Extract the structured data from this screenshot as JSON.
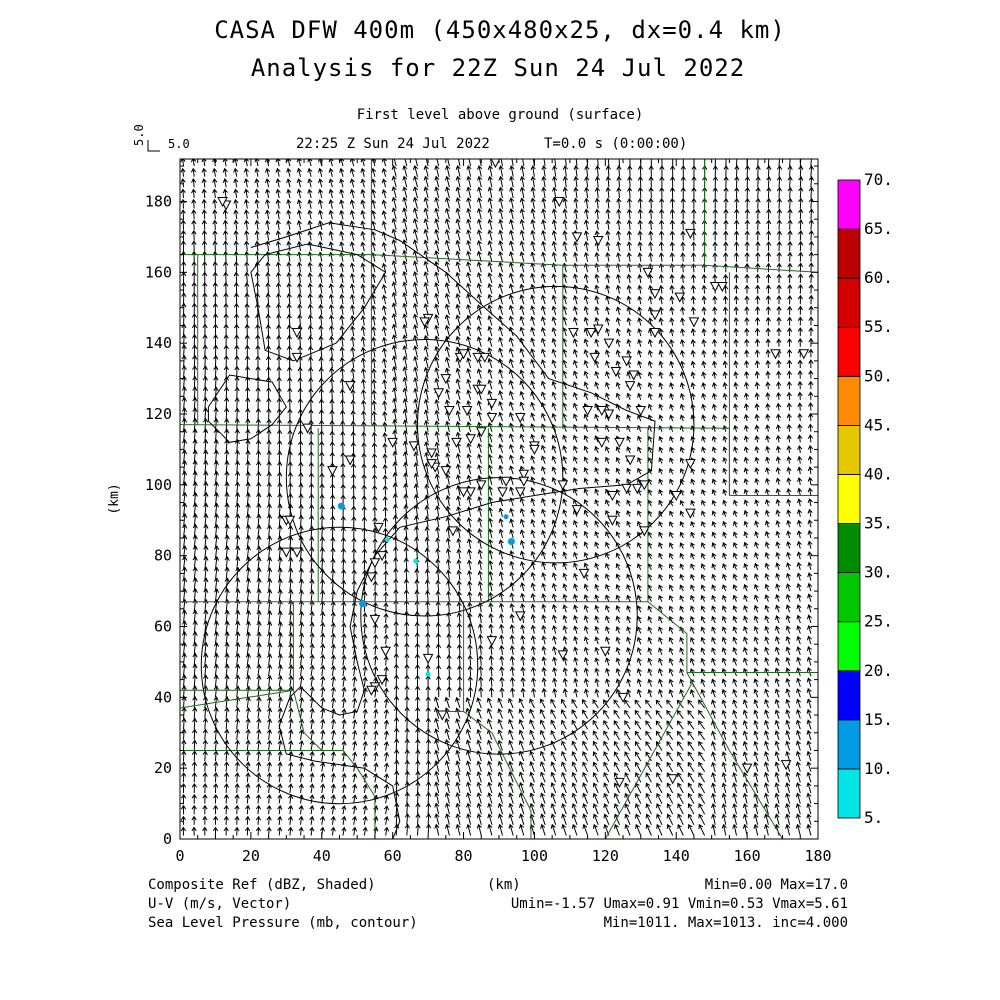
{
  "header": {
    "title1": "CASA DFW 400m (450x480x25, dx=0.4 km)",
    "title2": "Analysis for 22Z Sun 24 Jul 2022",
    "level": "First level above ground (surface)",
    "time": "22:25 Z Sun 24 Jul 2022",
    "tstamp": "T=0.0 s (0:00:00)",
    "ref_vec_label": "5.0",
    "ref_vec_side": "5.0"
  },
  "chart_data": {
    "type": "map",
    "xlabel": "(km)",
    "ylabel": "(km)",
    "xlim": [
      0,
      180
    ],
    "ylim": [
      0,
      192
    ],
    "xticks": [
      0,
      20,
      40,
      60,
      80,
      100,
      120,
      140,
      160,
      180
    ],
    "yticks": [
      0,
      20,
      40,
      60,
      80,
      100,
      120,
      140,
      160,
      180
    ],
    "colorbar": {
      "labels": [
        "5.",
        "10.",
        "15.",
        "20.",
        "25.",
        "30.",
        "35.",
        "40.",
        "45.",
        "50.",
        "55.",
        "60.",
        "65.",
        "70."
      ],
      "colors": [
        "#00e5e5",
        "#009be5",
        "#0000ff",
        "#00ff00",
        "#00c800",
        "#008c00",
        "#ffff00",
        "#e5c800",
        "#ff8c00",
        "#ff0000",
        "#d40000",
        "#bc0000",
        "#ff00ff"
      ]
    },
    "radar_rings": [
      {
        "center": [
          69,
          102
        ],
        "radius": 39
      },
      {
        "center": [
          106,
          117
        ],
        "radius": 39
      },
      {
        "center": [
          90,
          63
        ],
        "radius": 39
      },
      {
        "center": [
          45,
          49
        ],
        "radius": 39
      }
    ],
    "reflectivity_echoes": [
      {
        "x": 45.5,
        "y": 94,
        "dbz": 12
      },
      {
        "x": 92,
        "y": 91,
        "dbz": 10
      },
      {
        "x": 93.5,
        "y": 84,
        "dbz": 12
      },
      {
        "x": 66.5,
        "y": 78.5,
        "dbz": 6
      },
      {
        "x": 58.5,
        "y": 84.5,
        "dbz": 6
      },
      {
        "x": 51.5,
        "y": 66.5,
        "dbz": 13
      },
      {
        "x": 70,
        "y": 46.5,
        "dbz": 9
      }
    ],
    "observation_stations": [
      [
        13,
        179
      ],
      [
        12,
        180
      ],
      [
        33,
        143
      ],
      [
        33,
        136
      ],
      [
        48,
        128
      ],
      [
        70,
        147
      ],
      [
        69,
        146
      ],
      [
        73,
        126
      ],
      [
        75,
        130
      ],
      [
        79,
        136
      ],
      [
        80,
        137
      ],
      [
        84,
        136
      ],
      [
        86,
        136
      ],
      [
        84,
        127
      ],
      [
        85,
        127
      ],
      [
        81,
        121
      ],
      [
        76,
        121
      ],
      [
        82,
        113
      ],
      [
        85,
        115
      ],
      [
        88,
        123
      ],
      [
        88,
        119
      ],
      [
        96,
        119
      ],
      [
        96,
        98
      ],
      [
        100,
        111
      ],
      [
        100,
        110
      ],
      [
        108,
        100
      ],
      [
        112,
        93
      ],
      [
        114,
        75
      ],
      [
        108,
        52
      ],
      [
        120,
        53
      ],
      [
        125,
        40
      ],
      [
        126,
        99
      ],
      [
        122,
        97
      ],
      [
        122,
        90
      ],
      [
        129,
        99
      ],
      [
        131,
        87
      ],
      [
        131,
        100
      ],
      [
        111,
        143
      ],
      [
        116,
        143
      ],
      [
        117,
        136
      ],
      [
        118,
        144
      ],
      [
        121,
        140
      ],
      [
        123,
        132
      ],
      [
        126,
        135
      ],
      [
        128,
        131
      ],
      [
        127,
        128
      ],
      [
        130,
        121
      ],
      [
        119,
        121
      ],
      [
        121,
        120
      ],
      [
        115,
        121
      ],
      [
        119,
        112
      ],
      [
        124,
        112
      ],
      [
        127,
        107
      ],
      [
        134,
        143
      ],
      [
        134,
        148
      ],
      [
        134,
        154
      ],
      [
        132,
        160
      ],
      [
        141,
        153
      ],
      [
        144,
        171
      ],
      [
        145,
        146
      ],
      [
        144,
        106
      ],
      [
        144,
        92
      ],
      [
        140,
        97
      ],
      [
        139,
        17
      ],
      [
        124,
        16
      ],
      [
        118,
        169
      ],
      [
        112,
        170
      ],
      [
        107,
        180
      ],
      [
        89,
        191
      ],
      [
        97,
        103
      ],
      [
        97,
        101
      ],
      [
        92,
        101
      ],
      [
        91,
        98
      ],
      [
        85,
        100
      ],
      [
        82,
        98
      ],
      [
        80,
        98
      ],
      [
        77,
        87
      ],
      [
        88,
        56
      ],
      [
        96,
        63
      ],
      [
        78,
        112
      ],
      [
        75,
        104
      ],
      [
        72,
        105
      ],
      [
        71,
        109
      ],
      [
        71,
        106
      ],
      [
        66,
        111
      ],
      [
        60,
        112
      ],
      [
        48,
        107
      ],
      [
        30,
        90
      ],
      [
        31,
        90
      ],
      [
        33,
        81
      ],
      [
        30,
        81
      ],
      [
        36,
        116
      ],
      [
        43,
        104
      ],
      [
        56,
        88
      ],
      [
        55,
        78
      ],
      [
        57,
        80
      ],
      [
        54,
        74
      ],
      [
        55,
        62
      ],
      [
        58,
        53
      ],
      [
        57,
        45
      ],
      [
        55,
        43
      ],
      [
        54,
        42
      ],
      [
        70,
        51
      ],
      [
        74,
        35
      ],
      [
        171,
        21
      ],
      [
        151,
        156
      ],
      [
        168,
        137
      ],
      [
        153,
        156
      ],
      [
        176,
        137
      ],
      [
        160,
        20
      ]
    ],
    "legend": {
      "left": [
        "Composite Ref (dBZ, Shaded)",
        "U-V (m/s, Vector)",
        "Sea Level Pressure (mb, contour)"
      ],
      "center": "(km)",
      "right": [
        "Min=0.00 Max=17.0",
        "Umin=-1.57 Umax=0.91 Vmin=0.53 Vmax=5.61",
        "Min=1011. Max=1013. inc=4.000"
      ]
    }
  }
}
